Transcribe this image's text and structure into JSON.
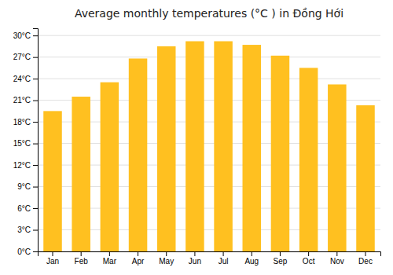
{
  "chart_data": {
    "type": "bar",
    "title": "Average monthly temperatures (°C ) in Đồng Hới",
    "categories": [
      "Jan",
      "Feb",
      "Mar",
      "Apr",
      "May",
      "Jun",
      "Jul",
      "Aug",
      "Sep",
      "Oct",
      "Nov",
      "Dec"
    ],
    "values": [
      19.5,
      21.5,
      23.5,
      26.8,
      28.5,
      29.2,
      29.2,
      28.7,
      27.2,
      25.5,
      23.2,
      20.3
    ],
    "color": "#FFC020",
    "ylim": [
      0,
      31
    ],
    "yticks": [
      {
        "value": 0,
        "label": "0°C"
      },
      {
        "value": 3,
        "label": "3°C"
      },
      {
        "value": 6,
        "label": "6°C"
      },
      {
        "value": 9,
        "label": "9°C"
      },
      {
        "value": 12,
        "label": "12°C"
      },
      {
        "value": 15,
        "label": "15°C"
      },
      {
        "value": 18,
        "label": "18°C"
      },
      {
        "value": 21,
        "label": "21°C"
      },
      {
        "value": 24,
        "label": "24°C"
      },
      {
        "value": 27,
        "label": "27°C"
      },
      {
        "value": 30,
        "label": "30°C"
      }
    ],
    "grid": true
  }
}
